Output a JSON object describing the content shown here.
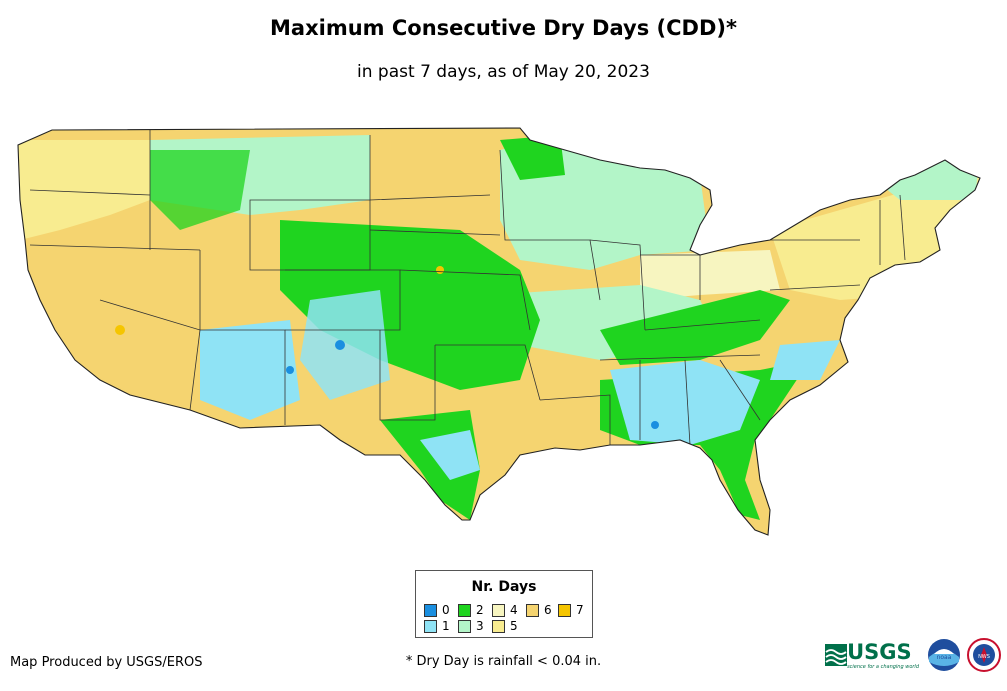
{
  "title": "Maximum Consecutive Dry Days (CDD)*",
  "subtitle": "in past 7 days, as of May 20, 2023",
  "legend": {
    "title": "Nr. Days",
    "items": [
      {
        "label": "0",
        "color": "#1a8fe0"
      },
      {
        "label": "1",
        "color": "#8fe3f5"
      },
      {
        "label": "2",
        "color": "#1fd41f"
      },
      {
        "label": "3",
        "color": "#b3f5c8"
      },
      {
        "label": "4",
        "color": "#f7f5c0"
      },
      {
        "label": "5",
        "color": "#f8ec90"
      },
      {
        "label": "6",
        "color": "#f5d470"
      },
      {
        "label": "7",
        "color": "#f5c500"
      }
    ]
  },
  "credit": "Map Produced by USGS/EROS",
  "footnote": "* Dry Day is rainfall < 0.04 in.",
  "logos": {
    "usgs": "USGS",
    "usgs_tagline": "science for a changing world",
    "noaa": "noaa",
    "nws": "NWS"
  }
}
